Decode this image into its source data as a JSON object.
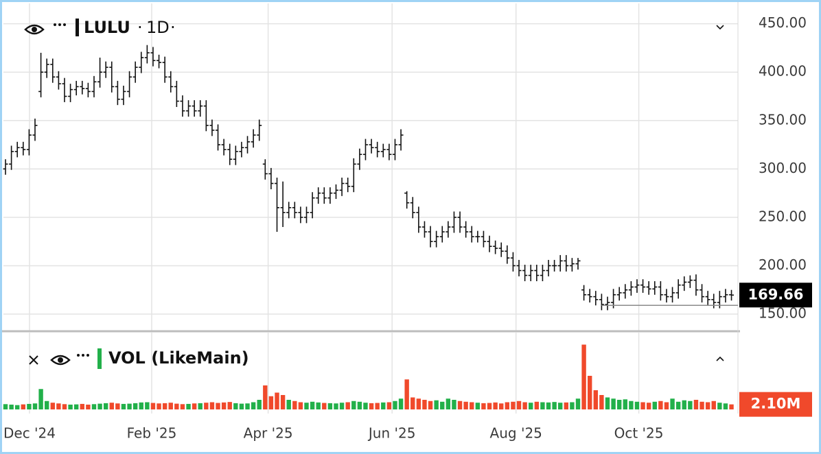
{
  "chart_data": [
    {
      "type": "ohlc",
      "title": "LULU",
      "interval": "1D",
      "color": "#111111",
      "open": [
        300,
        305,
        318,
        322,
        320,
        335,
        380,
        400,
        408,
        395,
        388,
        375,
        382,
        385,
        383,
        380,
        390,
        400,
        405,
        385,
        372,
        380,
        395,
        405,
        415,
        420,
        412,
        410,
        395,
        385,
        370,
        360,
        365,
        360,
        365,
        345,
        340,
        325,
        320,
        310,
        318,
        322,
        328,
        335,
        305,
        295,
        285,
        260,
        255,
        260,
        255,
        250,
        255,
        270,
        275,
        270,
        275,
        278,
        285,
        282,
        305,
        315,
        325,
        322,
        318,
        320,
        315,
        325,
        275,
        265,
        255,
        240,
        235,
        225,
        230,
        235,
        240,
        250,
        240,
        235,
        230,
        230,
        225,
        220,
        218,
        215,
        208,
        200,
        195,
        190,
        195,
        190,
        195,
        200,
        200,
        205,
        200,
        202,
        175,
        170,
        168,
        165,
        160,
        162,
        170,
        172,
        175,
        178,
        180,
        178,
        176,
        178,
        170,
        168,
        172,
        180,
        183,
        185,
        175,
        168,
        165,
        162,
        168,
        170
      ],
      "high": [
        310,
        324,
        328,
        328,
        341,
        352,
        420,
        414,
        414,
        401,
        394,
        388,
        391,
        391,
        389,
        396,
        415,
        411,
        411,
        391,
        386,
        401,
        411,
        421,
        428,
        426,
        418,
        416,
        401,
        391,
        376,
        371,
        371,
        371,
        371,
        351,
        346,
        331,
        326,
        324,
        328,
        334,
        341,
        351,
        310,
        301,
        291,
        287,
        266,
        266,
        261,
        261,
        276,
        281,
        281,
        281,
        284,
        291,
        291,
        311,
        321,
        331,
        331,
        328,
        326,
        326,
        331,
        341,
        277,
        271,
        261,
        246,
        241,
        236,
        241,
        246,
        256,
        256,
        246,
        241,
        236,
        236,
        231,
        226,
        224,
        221,
        214,
        206,
        201,
        201,
        201,
        201,
        206,
        206,
        211,
        211,
        208,
        208,
        180,
        176,
        174,
        171,
        168,
        176,
        178,
        181,
        184,
        186,
        186,
        184,
        184,
        184,
        176,
        178,
        186,
        189,
        190,
        191,
        181,
        174,
        171,
        174,
        176,
        175
      ],
      "low": [
        294,
        299,
        312,
        314,
        314,
        329,
        374,
        394,
        389,
        382,
        369,
        369,
        376,
        377,
        374,
        374,
        384,
        394,
        379,
        366,
        366,
        374,
        389,
        399,
        409,
        406,
        404,
        389,
        379,
        364,
        354,
        354,
        354,
        354,
        339,
        334,
        319,
        314,
        304,
        304,
        312,
        316,
        322,
        329,
        289,
        279,
        235,
        240,
        249,
        249,
        244,
        244,
        249,
        264,
        264,
        264,
        269,
        272,
        276,
        276,
        299,
        309,
        316,
        312,
        312,
        309,
        309,
        319,
        259,
        249,
        234,
        229,
        219,
        219,
        224,
        229,
        234,
        234,
        229,
        224,
        224,
        219,
        214,
        212,
        209,
        202,
        194,
        189,
        184,
        184,
        184,
        184,
        189,
        194,
        194,
        194,
        194,
        196,
        164,
        162,
        159,
        154,
        154,
        156,
        164,
        166,
        169,
        172,
        172,
        170,
        170,
        164,
        162,
        162,
        166,
        174,
        177,
        169,
        162,
        159,
        156,
        156,
        162,
        164
      ],
      "close": [
        305,
        318,
        322,
        320,
        335,
        345,
        400,
        408,
        395,
        388,
        375,
        382,
        385,
        383,
        380,
        390,
        400,
        405,
        385,
        372,
        380,
        395,
        405,
        415,
        420,
        412,
        410,
        395,
        385,
        370,
        360,
        365,
        360,
        365,
        345,
        340,
        325,
        320,
        310,
        318,
        322,
        328,
        335,
        345,
        295,
        285,
        260,
        255,
        260,
        255,
        250,
        255,
        270,
        275,
        270,
        275,
        278,
        285,
        282,
        305,
        315,
        325,
        322,
        318,
        320,
        315,
        325,
        335,
        265,
        255,
        240,
        235,
        225,
        230,
        235,
        240,
        250,
        240,
        235,
        230,
        230,
        225,
        220,
        218,
        215,
        208,
        200,
        195,
        190,
        195,
        190,
        195,
        200,
        200,
        205,
        200,
        202,
        205,
        170,
        168,
        165,
        160,
        162,
        170,
        172,
        175,
        178,
        180,
        178,
        176,
        178,
        170,
        168,
        172,
        180,
        183,
        185,
        175,
        168,
        165,
        162,
        168,
        170,
        169.66
      ],
      "ylim": [
        133,
        471
      ],
      "yticks": [
        {
          "value": 150,
          "label": "150.00"
        },
        {
          "value": 200,
          "label": "200.00"
        },
        {
          "value": 250,
          "label": "250.00"
        },
        {
          "value": 300,
          "label": "300.00"
        },
        {
          "value": 350,
          "label": "350.00"
        },
        {
          "value": 400,
          "label": "400.00"
        },
        {
          "value": 450,
          "label": "450.00"
        }
      ],
      "xlim": [
        -0.35,
        124.1
      ],
      "xticks": [
        {
          "value": 4.07,
          "label": "Dec '24"
        },
        {
          "value": 24.77,
          "label": "Feb '25"
        },
        {
          "value": 44.5,
          "label": "Apr '25"
        },
        {
          "value": 65.5,
          "label": "Jun '25"
        },
        {
          "value": 86.5,
          "label": "Aug '25"
        },
        {
          "value": 107.3,
          "label": "Oct '25"
        }
      ],
      "grid": true,
      "hline": {
        "value": 159,
        "from": 101
      },
      "price_tag_color": "#000000"
    },
    {
      "type": "volume",
      "title": "VOL (LikeMain)",
      "values": [
        2.2,
        2.0,
        1.8,
        2.1,
        2.3,
        2.5,
        8.5,
        3.5,
        2.8,
        2.5,
        2.2,
        2.0,
        2.1,
        2.3,
        2.0,
        2.2,
        2.4,
        2.6,
        2.8,
        2.5,
        2.3,
        2.4,
        2.6,
        2.9,
        3.0,
        2.7,
        2.5,
        2.6,
        2.8,
        2.4,
        2.2,
        2.3,
        2.5,
        2.6,
        2.8,
        3.0,
        2.7,
        2.9,
        3.1,
        2.6,
        2.4,
        2.5,
        3.0,
        4.0,
        10.0,
        5.5,
        7.0,
        6.0,
        4.0,
        3.5,
        3.0,
        2.8,
        3.2,
        2.9,
        2.7,
        2.6,
        2.5,
        2.8,
        3.0,
        3.5,
        3.2,
        2.8,
        2.6,
        2.7,
        2.9,
        3.0,
        3.5,
        4.5,
        12.5,
        5.0,
        4.5,
        4.0,
        3.5,
        3.8,
        3.2,
        4.5,
        4.0,
        3.5,
        3.2,
        3.0,
        2.8,
        2.6,
        2.7,
        2.9,
        2.5,
        3.0,
        3.2,
        3.5,
        3.0,
        2.8,
        3.2,
        3.0,
        2.9,
        3.1,
        2.8,
        2.9,
        3.0,
        4.5,
        27,
        14,
        8,
        6,
        5,
        4.5,
        4.0,
        4.2,
        3.5,
        3.2,
        3.0,
        2.8,
        3.2,
        3.5,
        3.0,
        4.5,
        3.2,
        3.8,
        3.5,
        4.0,
        3.2,
        3.0,
        3.5,
        2.8,
        2.5,
        2.1
      ],
      "last_value_label": "2.10M",
      "ylim": [
        0,
        32
      ],
      "up_color": "#22b04a",
      "down_color": "#f0492b"
    }
  ]
}
